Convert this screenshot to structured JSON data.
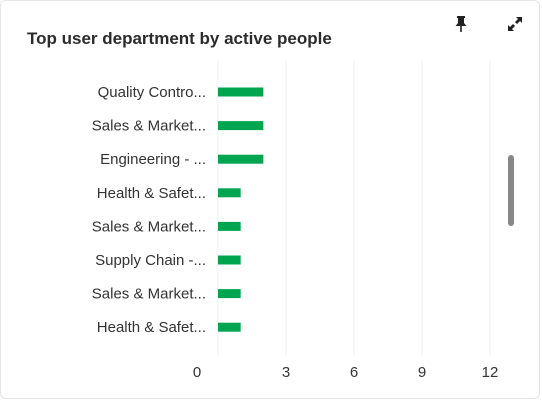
{
  "widget": {
    "title": "Top user department by active people",
    "pin_icon": "pin-icon",
    "expand_icon": "expand-icon"
  },
  "chart_data": {
    "type": "bar",
    "orientation": "horizontal",
    "title": "Top user department by active people",
    "categories": [
      "Quality Contro...",
      "Sales & Market...",
      "Engineering - ...",
      "Health & Safet...",
      "Sales & Market...",
      "Supply Chain -...",
      "Sales & Market...",
      "Health & Safet..."
    ],
    "values": [
      2,
      2,
      2,
      1,
      1,
      1,
      1,
      1
    ],
    "x_ticks": [
      0,
      3,
      6,
      9,
      12
    ],
    "xlim": [
      0,
      12
    ],
    "grid": true,
    "bar_color": "#00a54f",
    "grid_color": "#f0f0f0"
  }
}
